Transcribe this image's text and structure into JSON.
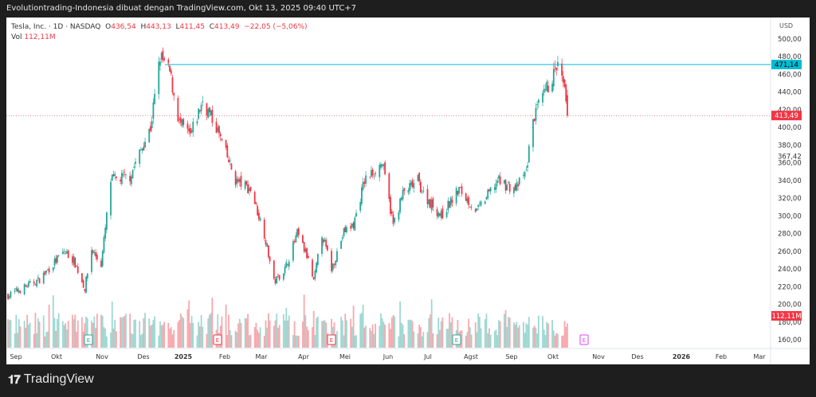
{
  "header": {
    "title": "Evolutiontrading-Indonesia dibuat dengan TradingView.com, Okt 13, 2025 09:40 UTC+7"
  },
  "legend": {
    "symbol": "Tesla, Inc. · 1D · NASDAQ",
    "open_label": "O",
    "open": "436,54",
    "high_label": "H",
    "high": "443,13",
    "low_label": "L",
    "low": "411,45",
    "close_label": "C",
    "close": "413,49",
    "change": "−22,05 (−5,06%)",
    "vol_label": "Vol",
    "vol": "112,11M"
  },
  "brand": {
    "name": "TradingView"
  },
  "colors": {
    "up": "#26a69a",
    "down": "#f23645",
    "vol_up": "#9fd8d2",
    "vol_down": "#f7a9ae",
    "hline": "#00bcd4",
    "earnings_future": "#e040fb"
  },
  "chart_data": {
    "type": "candlestick",
    "currency": "USD",
    "ylim": [
      150,
      505
    ],
    "yticks": [
      "500,00",
      "480,00",
      "460,00",
      "440,00",
      "420,00",
      "400,00",
      "380,00",
      "360,00",
      "340,00",
      "320,00",
      "300,00",
      "280,00",
      "260,00",
      "240,00",
      "220,00",
      "200,00",
      "180,00",
      "160,00"
    ],
    "ytick_values": [
      500,
      480,
      460,
      440,
      420,
      400,
      380,
      360,
      340,
      320,
      300,
      280,
      260,
      240,
      220,
      200,
      180,
      160
    ],
    "xticks": [
      "Sep",
      "Okt",
      "Nov",
      "Des",
      "2025",
      "Feb",
      "Mar",
      "Apr",
      "Mei",
      "Jun",
      "Jul",
      "Agst",
      "Sep",
      "Okt",
      "Nov",
      "Des",
      "2026",
      "Feb",
      "Mar"
    ],
    "price_tags": [
      {
        "label": "471,14",
        "value": 471.14,
        "type": "horizontal-line"
      },
      {
        "label": "413,49",
        "value": 413.49,
        "type": "last-price"
      },
      {
        "label": "367,42",
        "value": 367.42,
        "type": "plain"
      },
      {
        "label": "112,11M",
        "value": 112.11,
        "type": "volume"
      }
    ],
    "approx_close_path": [
      [
        "2024-08-28",
        210
      ],
      [
        "2024-09-20",
        228
      ],
      [
        "2024-10-08",
        260
      ],
      [
        "2024-10-15",
        250
      ],
      [
        "2024-10-23",
        218
      ],
      [
        "2024-10-28",
        262
      ],
      [
        "2024-11-04",
        245
      ],
      [
        "2024-11-11",
        340
      ],
      [
        "2024-11-25",
        345
      ],
      [
        "2024-12-10",
        400
      ],
      [
        "2024-12-17",
        480
      ],
      [
        "2024-12-24",
        462
      ],
      [
        "2024-12-31",
        405
      ],
      [
        "2025-01-08",
        390
      ],
      [
        "2025-01-17",
        430
      ],
      [
        "2025-01-27",
        400
      ],
      [
        "2025-02-10",
        340
      ],
      [
        "2025-02-21",
        330
      ],
      [
        "2025-03-03",
        280
      ],
      [
        "2025-03-10",
        225
      ],
      [
        "2025-03-18",
        240
      ],
      [
        "2025-03-27",
        280
      ],
      [
        "2025-04-03",
        255
      ],
      [
        "2025-04-08",
        225
      ],
      [
        "2025-04-14",
        280
      ],
      [
        "2025-04-21",
        240
      ],
      [
        "2025-04-30",
        282
      ],
      [
        "2025-05-07",
        290
      ],
      [
        "2025-05-15",
        340
      ],
      [
        "2025-05-28",
        360
      ],
      [
        "2025-06-05",
        290
      ],
      [
        "2025-06-12",
        325
      ],
      [
        "2025-06-23",
        340
      ],
      [
        "2025-06-27",
        325
      ],
      [
        "2025-07-10",
        300
      ],
      [
        "2025-07-23",
        330
      ],
      [
        "2025-08-05",
        305
      ],
      [
        "2025-08-20",
        340
      ],
      [
        "2025-09-02",
        330
      ],
      [
        "2025-09-10",
        350
      ],
      [
        "2025-09-15",
        410
      ],
      [
        "2025-09-24",
        440
      ],
      [
        "2025-10-03",
        470
      ],
      [
        "2025-10-08",
        440
      ],
      [
        "2025-10-10",
        413.49
      ]
    ],
    "max_volume_label": "112,11M"
  },
  "earnings": [
    {
      "label": "E",
      "kind": "beat"
    },
    {
      "label": "E",
      "kind": "miss"
    },
    {
      "label": "E",
      "kind": "miss"
    },
    {
      "label": "E",
      "kind": "beat"
    },
    {
      "label": "E",
      "kind": "upcoming"
    }
  ]
}
